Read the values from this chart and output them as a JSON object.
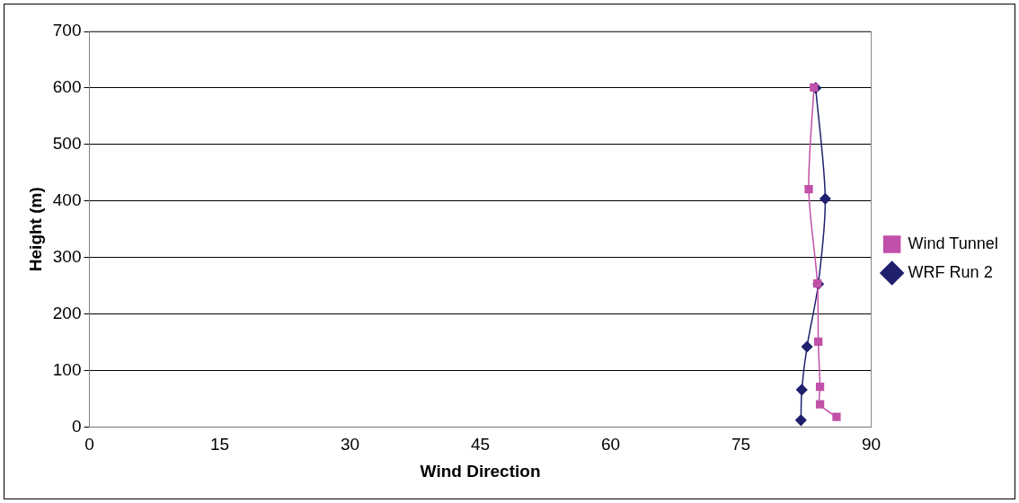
{
  "chart_data": {
    "type": "line",
    "xlabel": "Wind Direction",
    "ylabel": "Height (m)",
    "xlim": [
      0,
      90
    ],
    "xticks": [
      0,
      15,
      30,
      45,
      60,
      75,
      90
    ],
    "ylim": [
      0,
      700
    ],
    "yticks": [
      0,
      100,
      200,
      300,
      400,
      500,
      600,
      700
    ],
    "grid": "y",
    "legend": "right",
    "series": [
      {
        "name": "WRF Run 2",
        "color": "#1f1f6e",
        "marker": "diamond",
        "x": [
          81.9,
          82.0,
          82.6,
          83.9,
          84.7,
          83.6
        ],
        "values": [
          12,
          66,
          142,
          253,
          404,
          600
        ]
      },
      {
        "name": "Wind Tunnel",
        "color": "#c050a8",
        "marker": "square",
        "x": [
          86.0,
          84.1,
          84.1,
          83.9,
          83.8,
          82.8,
          83.4
        ],
        "values": [
          18,
          40,
          71,
          151,
          254,
          421,
          601
        ]
      }
    ]
  }
}
